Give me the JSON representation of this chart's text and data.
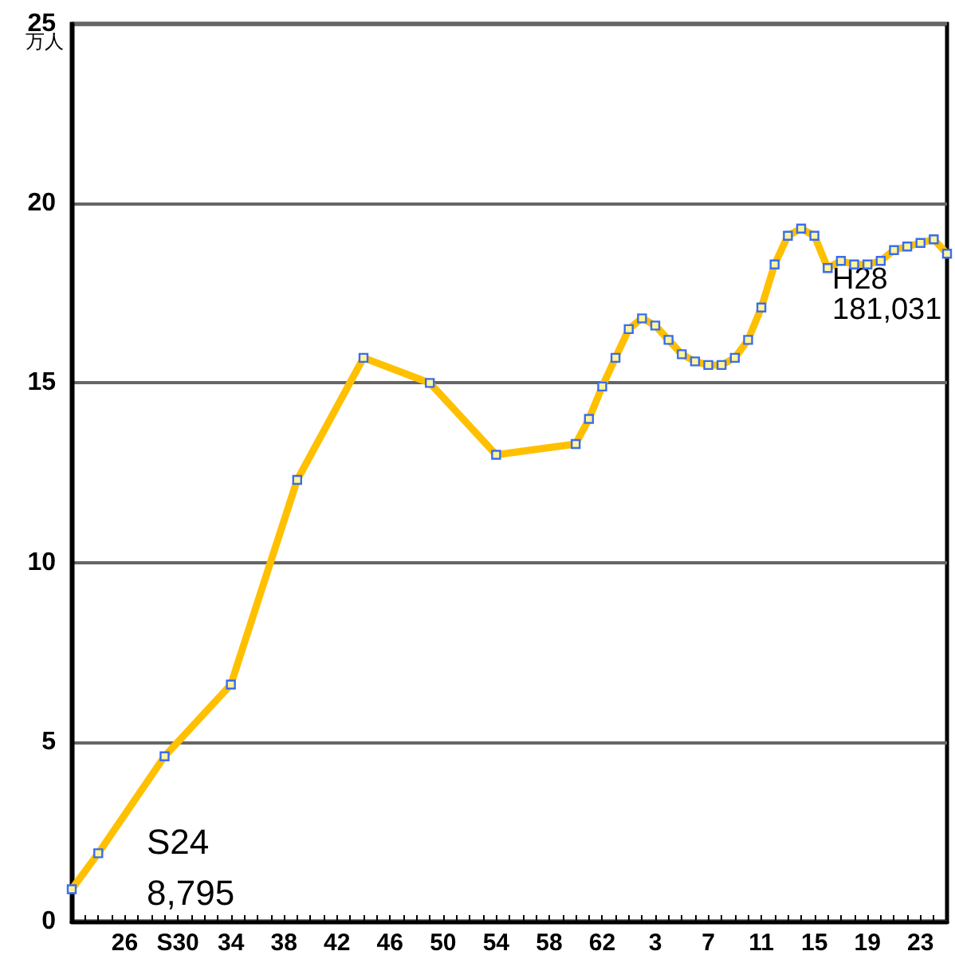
{
  "chart_data": {
    "type": "line",
    "ylabel": "万人",
    "categories": [
      null,
      null,
      null,
      null,
      "26",
      null,
      null,
      null,
      "S30",
      null,
      null,
      null,
      "34",
      null,
      null,
      null,
      "38",
      null,
      null,
      null,
      "42",
      null,
      null,
      null,
      "46",
      null,
      null,
      null,
      "50",
      null,
      null,
      null,
      "54",
      null,
      null,
      null,
      "58",
      null,
      null,
      null,
      "62",
      null,
      null,
      null,
      "3",
      null,
      null,
      null,
      "7",
      null,
      null,
      null,
      "11",
      null,
      null,
      null,
      "15",
      null,
      null,
      null,
      "19",
      null,
      null,
      null,
      "23",
      null,
      null
    ],
    "series": [
      {
        "color": "#ffc000",
        "values": [
          0.9,
          null,
          1.9,
          null,
          null,
          null,
          null,
          4.6,
          null,
          null,
          null,
          null,
          6.6,
          null,
          null,
          null,
          null,
          12.3,
          null,
          null,
          null,
          null,
          15.7,
          null,
          null,
          null,
          null,
          15.0,
          null,
          null,
          null,
          null,
          13.0,
          null,
          null,
          null,
          null,
          null,
          13.3,
          14.0,
          14.9,
          15.7,
          16.5,
          16.8,
          16.6,
          16.2,
          15.8,
          15.6,
          15.5,
          15.5,
          15.7,
          16.2,
          17.1,
          18.3,
          19.1,
          19.3,
          19.1,
          18.2,
          18.4,
          18.3,
          18.3,
          18.4,
          18.7,
          18.8,
          18.9,
          19.0,
          18.6
        ]
      }
    ],
    "ylim": [
      0,
      25
    ],
    "yticks": [
      0,
      5,
      10,
      15,
      20,
      25
    ],
    "grid": "y",
    "marker": "square",
    "line_style": "solid",
    "annotations": [
      "S24\n8,795",
      "H28\n181,031"
    ]
  }
}
